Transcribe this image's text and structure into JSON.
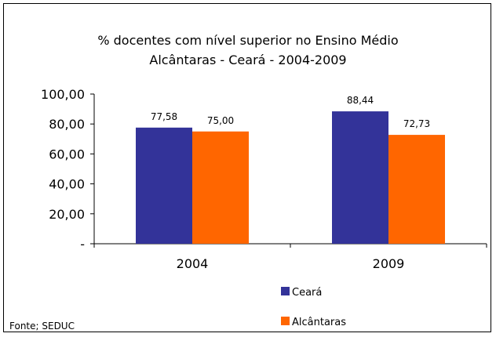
{
  "chart_data": {
    "type": "bar",
    "title_line1": "% docentes com nível  superior no Ensino Médio",
    "title_line2": "Alcântaras -  Ceará - 2004-2009",
    "xlabel": "",
    "ylabel": "",
    "ylim": [
      0,
      100
    ],
    "yticks": [
      0,
      20,
      40,
      60,
      80,
      100
    ],
    "ytick_labels": [
      "-",
      "20,00",
      "40,00",
      "60,00",
      "80,00",
      "100,00"
    ],
    "categories": [
      "2004",
      "2009"
    ],
    "grid": false,
    "legend_position": "bottom-right",
    "series": [
      {
        "name": "Ceará",
        "color": "#333399",
        "values": [
          77.58,
          88.44
        ],
        "labels": [
          "77,58",
          "88,44"
        ]
      },
      {
        "name": "Alcântaras",
        "color": "#FF6600",
        "values": [
          75.0,
          72.73
        ],
        "labels": [
          "75,00",
          "72,73"
        ]
      }
    ],
    "source": "Fonte; SEDUC"
  }
}
